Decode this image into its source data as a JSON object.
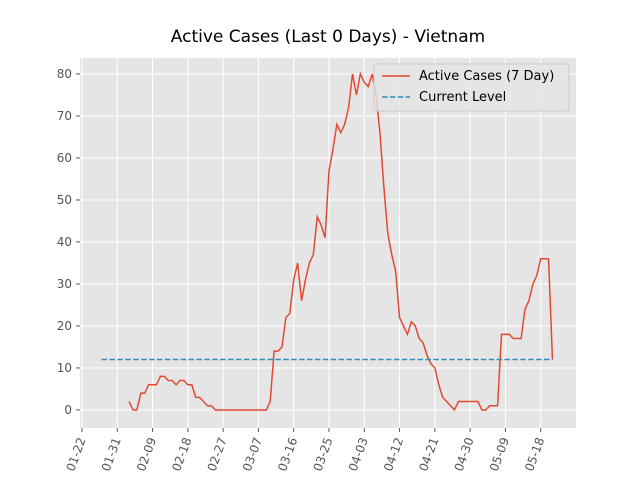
{
  "chart_data": {
    "type": "line",
    "title": "Active Cases (Last 0 Days) - Vietnam",
    "series": [
      {
        "name": "Active Cases (7 Day)",
        "color": "#e24a33",
        "dash": false,
        "x": [
          "02-03",
          "02-04",
          "02-05",
          "02-06",
          "02-07",
          "02-08",
          "02-09",
          "02-10",
          "02-11",
          "02-12",
          "02-13",
          "02-14",
          "02-15",
          "02-16",
          "02-17",
          "02-18",
          "02-19",
          "02-20",
          "02-21",
          "02-22",
          "02-23",
          "02-24",
          "02-25",
          "02-26",
          "02-27",
          "02-28",
          "02-29",
          "03-01",
          "03-02",
          "03-03",
          "03-04",
          "03-05",
          "03-06",
          "03-07",
          "03-08",
          "03-09",
          "03-10",
          "03-11",
          "03-12",
          "03-13",
          "03-14",
          "03-15",
          "03-16",
          "03-17",
          "03-18",
          "03-19",
          "03-20",
          "03-21",
          "03-22",
          "03-23",
          "03-24",
          "03-25",
          "03-26",
          "03-27",
          "03-28",
          "03-29",
          "03-30",
          "03-31",
          "04-01",
          "04-02",
          "04-03",
          "04-04",
          "04-05",
          "04-06",
          "04-07",
          "04-08",
          "04-09",
          "04-10",
          "04-11",
          "04-12",
          "04-13",
          "04-14",
          "04-15",
          "04-16",
          "04-17",
          "04-18",
          "04-19",
          "04-20",
          "04-21",
          "04-22",
          "04-23",
          "04-24",
          "04-25",
          "04-26",
          "04-27",
          "04-28",
          "04-29",
          "04-30",
          "05-01",
          "05-02",
          "05-03",
          "05-04",
          "05-05",
          "05-06",
          "05-07",
          "05-08",
          "05-09",
          "05-10",
          "05-11",
          "05-12",
          "05-13",
          "05-14",
          "05-15",
          "05-16",
          "05-17",
          "05-18",
          "05-19",
          "05-20",
          "05-21"
        ],
        "values": [
          2,
          0,
          0,
          4,
          4,
          6,
          6,
          6,
          8,
          8,
          7,
          7,
          6,
          7,
          7,
          6,
          6,
          3,
          3,
          2,
          1,
          1,
          0,
          0,
          0,
          0,
          0,
          0,
          0,
          0,
          0,
          0,
          0,
          0,
          0,
          0,
          2,
          14,
          14,
          15,
          22,
          23,
          31,
          35,
          26,
          31,
          35,
          37,
          46,
          44,
          41,
          57,
          62,
          68,
          66,
          68,
          72,
          80,
          75,
          80,
          78,
          77,
          80,
          75,
          66,
          53,
          42,
          37,
          33,
          22,
          20,
          18,
          21,
          20,
          17,
          16,
          13,
          11,
          10,
          6,
          3,
          2,
          1,
          0,
          2,
          2,
          2,
          2,
          2,
          2,
          0,
          0,
          1,
          1,
          1,
          18,
          18,
          18,
          17,
          17,
          17,
          24,
          26,
          30,
          32,
          36,
          36,
          36,
          12
        ]
      },
      {
        "name": "Current Level",
        "color": "#348abd",
        "dash": true,
        "x": [
          "01-27",
          "05-21"
        ],
        "values": [
          12,
          12
        ]
      }
    ],
    "xlim": [
      "01-22",
      "05-27"
    ],
    "xticks": [
      "01-22",
      "01-31",
      "02-09",
      "02-18",
      "02-27",
      "03-07",
      "03-16",
      "03-25",
      "04-03",
      "04-12",
      "04-21",
      "04-30",
      "05-09",
      "05-18"
    ],
    "ylim": [
      -4.3,
      83.8
    ],
    "yticks": [
      0,
      10,
      20,
      30,
      40,
      50,
      60,
      70,
      80
    ],
    "grid": true,
    "legend": "upper-right"
  }
}
